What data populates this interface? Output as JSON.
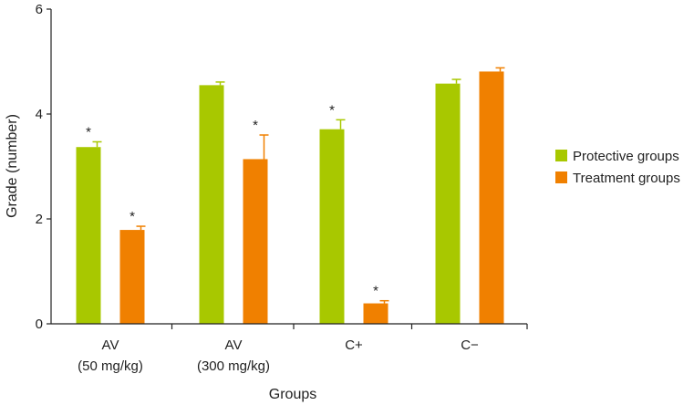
{
  "chart_data": {
    "type": "bar",
    "title": "",
    "xlabel": "Groups",
    "ylabel": "Grade (number)",
    "ylim": [
      0,
      6
    ],
    "yticks": [
      "0",
      "2",
      "4",
      "6"
    ],
    "categories": [
      {
        "line1": "AV",
        "line2": "(50 mg/kg)"
      },
      {
        "line1": "AV",
        "line2": "(300 mg/kg)"
      },
      {
        "line1": "C+",
        "line2": ""
      },
      {
        "line1": "C−",
        "line2": ""
      }
    ],
    "series": [
      {
        "name": "Protective groups",
        "color": "#a8c800",
        "values": [
          3.37,
          4.55,
          3.71,
          4.58
        ],
        "errors": [
          0.1,
          0.06,
          0.18,
          0.08
        ],
        "significance": [
          "*",
          "",
          "*",
          ""
        ]
      },
      {
        "name": "Treatment groups",
        "color": "#f08000",
        "values": [
          1.79,
          3.14,
          0.39,
          4.81
        ],
        "errors": [
          0.07,
          0.46,
          0.05,
          0.07
        ],
        "significance": [
          "*",
          "*",
          "*",
          ""
        ]
      }
    ],
    "legend_position": "right"
  }
}
